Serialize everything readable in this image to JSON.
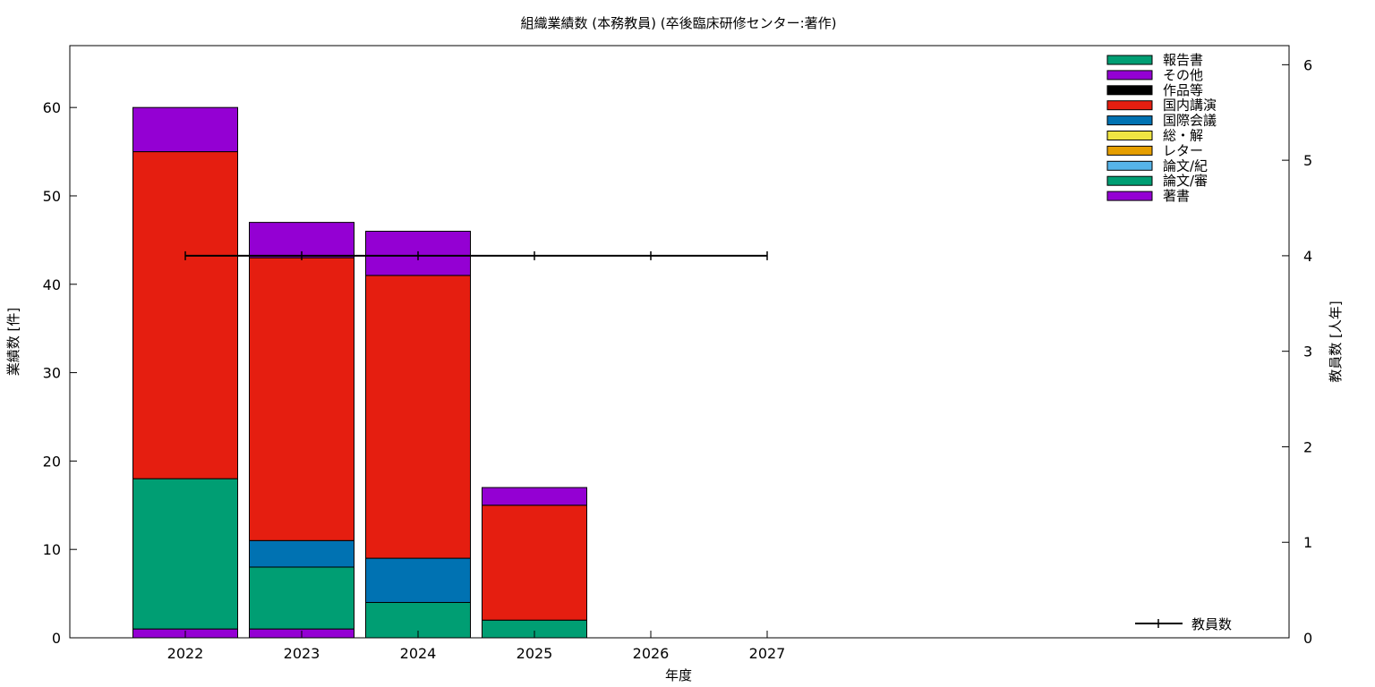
{
  "chart_data": {
    "type": "bar",
    "stacked": true,
    "title": "組織業績数 (本務教員) (卒後臨床研修センター:著作)",
    "xlabel": "年度",
    "ylabel": "業績数 [件]",
    "y2label": "教員数 [人年]",
    "categories": [
      "2022",
      "2023",
      "2024",
      "2025",
      "2026",
      "2027"
    ],
    "ylim": [
      0,
      67
    ],
    "y2lim": [
      0,
      6.2
    ],
    "yticks": [
      0,
      10,
      20,
      30,
      40,
      50,
      60
    ],
    "y2ticks": [
      0,
      1,
      2,
      3,
      4,
      5,
      6
    ],
    "grid": false,
    "legend_position": "top-right",
    "series": [
      {
        "name": "著書",
        "color": "#9400d3",
        "values": [
          1,
          1,
          0,
          0,
          0,
          0
        ]
      },
      {
        "name": "論文/審",
        "color": "#009e73",
        "values": [
          17,
          7,
          4,
          2,
          0,
          0
        ]
      },
      {
        "name": "論文/紀",
        "color": "#56b4e9",
        "values": [
          0,
          0,
          0,
          0,
          0,
          0
        ]
      },
      {
        "name": "レター",
        "color": "#e69f00",
        "values": [
          0,
          0,
          0,
          0,
          0,
          0
        ]
      },
      {
        "name": "総・解",
        "color": "#f0e442",
        "values": [
          0,
          0,
          0,
          0,
          0,
          0
        ]
      },
      {
        "name": "国際会議",
        "color": "#0072b2",
        "values": [
          0,
          3,
          5,
          0,
          0,
          0
        ]
      },
      {
        "name": "国内講演",
        "color": "#e51e10",
        "values": [
          37,
          32,
          32,
          13,
          0,
          0
        ]
      },
      {
        "name": "作品等",
        "color": "#000000",
        "values": [
          0,
          0,
          0,
          0,
          0,
          0
        ]
      },
      {
        "name": "その他",
        "color": "#9400d3",
        "values": [
          5,
          4,
          5,
          2,
          0,
          0
        ]
      },
      {
        "name": "報告書",
        "color": "#009e73",
        "values": [
          0,
          0,
          0,
          0,
          0,
          0
        ]
      }
    ],
    "line_series": {
      "name": "教員数",
      "axis": "y2",
      "color": "#000000",
      "values": [
        4,
        4,
        4,
        4,
        4,
        4
      ]
    }
  }
}
